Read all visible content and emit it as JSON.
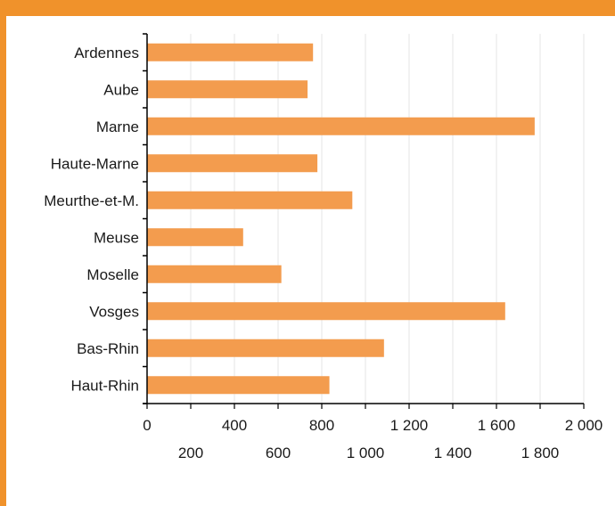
{
  "colors": {
    "frame": "#f0922b",
    "bar": "#f39c4e",
    "grid": "#e6e6e6",
    "axis": "#000000"
  },
  "chart_data": {
    "type": "bar",
    "orientation": "horizontal",
    "title": "",
    "xlabel": "",
    "ylabel": "",
    "categories": [
      "Ardennes",
      "Aube",
      "Marne",
      "Haute-Marne",
      "Meurthe-et-M.",
      "Meuse",
      "Moselle",
      "Vosges",
      "Bas-Rhin",
      "Haut-Rhin"
    ],
    "values": [
      760,
      735,
      1775,
      780,
      940,
      440,
      615,
      1640,
      1085,
      835
    ],
    "xlim": [
      0,
      2000
    ],
    "ticks": [
      {
        "value": 0,
        "label": "0"
      },
      {
        "value": 200,
        "label": "200"
      },
      {
        "value": 400,
        "label": "400"
      },
      {
        "value": 600,
        "label": "600"
      },
      {
        "value": 800,
        "label": "800"
      },
      {
        "value": 1000,
        "label": "1 000"
      },
      {
        "value": 1200,
        "label": "1 200"
      },
      {
        "value": 1400,
        "label": "1 400"
      },
      {
        "value": 1600,
        "label": "1 600"
      },
      {
        "value": 1800,
        "label": "1 800"
      },
      {
        "value": 2000,
        "label": "2 000"
      }
    ],
    "grid": true,
    "legend": "none"
  }
}
